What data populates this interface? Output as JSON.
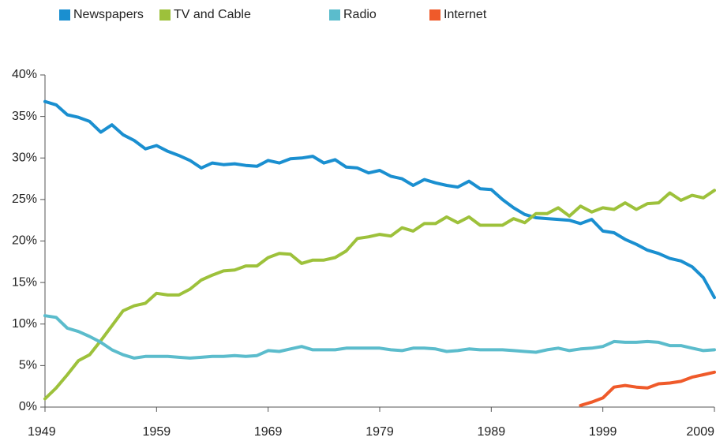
{
  "chart_data": {
    "type": "line",
    "x": [
      1949,
      1950,
      1951,
      1952,
      1953,
      1954,
      1955,
      1956,
      1957,
      1958,
      1959,
      1960,
      1961,
      1962,
      1963,
      1964,
      1965,
      1966,
      1967,
      1968,
      1969,
      1970,
      1971,
      1972,
      1973,
      1974,
      1975,
      1976,
      1977,
      1978,
      1979,
      1980,
      1981,
      1982,
      1983,
      1984,
      1985,
      1986,
      1987,
      1988,
      1989,
      1990,
      1991,
      1992,
      1993,
      1994,
      1995,
      1996,
      1997,
      1998,
      1999,
      2000,
      2001,
      2002,
      2003,
      2004,
      2005,
      2006,
      2007,
      2008,
      2009
    ],
    "series": [
      {
        "name": "Newspapers",
        "color": "#1a8fd0",
        "values": [
          36.8,
          36.4,
          35.2,
          34.9,
          34.4,
          33.1,
          34.0,
          32.8,
          32.1,
          31.1,
          31.5,
          30.8,
          30.3,
          29.7,
          28.8,
          29.4,
          29.2,
          29.3,
          29.1,
          29.0,
          29.7,
          29.4,
          29.9,
          30.0,
          30.2,
          29.4,
          29.8,
          28.9,
          28.8,
          28.2,
          28.5,
          27.8,
          27.5,
          26.7,
          27.4,
          27.0,
          26.7,
          26.5,
          27.2,
          26.3,
          26.2,
          25.0,
          24.0,
          23.2,
          22.8,
          22.7,
          22.6,
          22.5,
          22.1,
          22.6,
          21.2,
          21.0,
          20.2,
          19.6,
          18.9,
          18.5,
          17.9,
          17.6,
          16.9,
          15.6,
          13.2
        ]
      },
      {
        "name": "TV and Cable",
        "color": "#9dc13b",
        "values": [
          1.0,
          2.3,
          3.9,
          5.6,
          6.3,
          8.0,
          9.8,
          11.6,
          12.2,
          12.5,
          13.7,
          13.5,
          13.5,
          14.2,
          15.3,
          15.9,
          16.4,
          16.5,
          17.0,
          17.0,
          18.0,
          18.5,
          18.4,
          17.3,
          17.7,
          17.7,
          18.0,
          18.8,
          20.3,
          20.5,
          20.8,
          20.6,
          21.6,
          21.2,
          22.1,
          22.1,
          22.9,
          22.2,
          22.9,
          21.9,
          21.9,
          21.9,
          22.7,
          22.2,
          23.3,
          23.3,
          24.0,
          23.0,
          24.2,
          23.5,
          24.0,
          23.8,
          24.6,
          23.8,
          24.5,
          24.6,
          25.8,
          24.9,
          25.5,
          25.2,
          26.1
        ]
      },
      {
        "name": "Radio",
        "color": "#5bbccc",
        "values": [
          11.0,
          10.8,
          9.5,
          9.1,
          8.5,
          7.8,
          6.9,
          6.3,
          5.9,
          6.1,
          6.1,
          6.1,
          6.0,
          5.9,
          6.0,
          6.1,
          6.1,
          6.2,
          6.1,
          6.2,
          6.8,
          6.7,
          7.0,
          7.3,
          6.9,
          6.9,
          6.9,
          7.1,
          7.1,
          7.1,
          7.1,
          6.9,
          6.8,
          7.1,
          7.1,
          7.0,
          6.7,
          6.8,
          7.0,
          6.9,
          6.9,
          6.9,
          6.8,
          6.7,
          6.6,
          6.9,
          7.1,
          6.8,
          7.0,
          7.1,
          7.3,
          7.9,
          7.8,
          7.8,
          7.9,
          7.8,
          7.4,
          7.4,
          7.1,
          6.8,
          6.9
        ]
      },
      {
        "name": "Internet",
        "color": "#ef5a2a",
        "values": [
          null,
          null,
          null,
          null,
          null,
          null,
          null,
          null,
          null,
          null,
          null,
          null,
          null,
          null,
          null,
          null,
          null,
          null,
          null,
          null,
          null,
          null,
          null,
          null,
          null,
          null,
          null,
          null,
          null,
          null,
          null,
          null,
          null,
          null,
          null,
          null,
          null,
          null,
          null,
          null,
          null,
          null,
          null,
          null,
          null,
          null,
          null,
          null,
          0.2,
          0.6,
          1.1,
          2.4,
          2.6,
          2.4,
          2.3,
          2.8,
          2.9,
          3.1,
          3.6,
          3.9,
          4.2
        ]
      }
    ],
    "xlim": [
      1949,
      2009
    ],
    "xticks": [
      1949,
      1959,
      1969,
      1979,
      1989,
      1999,
      2009
    ],
    "ylim": [
      0,
      40
    ],
    "yticks": [
      {
        "value": 0,
        "label": "0%"
      },
      {
        "value": 5,
        "label": "5%"
      },
      {
        "value": 10,
        "label": "10%"
      },
      {
        "value": 15,
        "label": "15%"
      },
      {
        "value": 20,
        "label": "20%"
      },
      {
        "value": 25,
        "label": "25%"
      },
      {
        "value": 30,
        "label": "30%"
      },
      {
        "value": 35,
        "label": "35%"
      },
      {
        "value": 40,
        "label": "40%"
      }
    ],
    "legend": "top-left"
  }
}
